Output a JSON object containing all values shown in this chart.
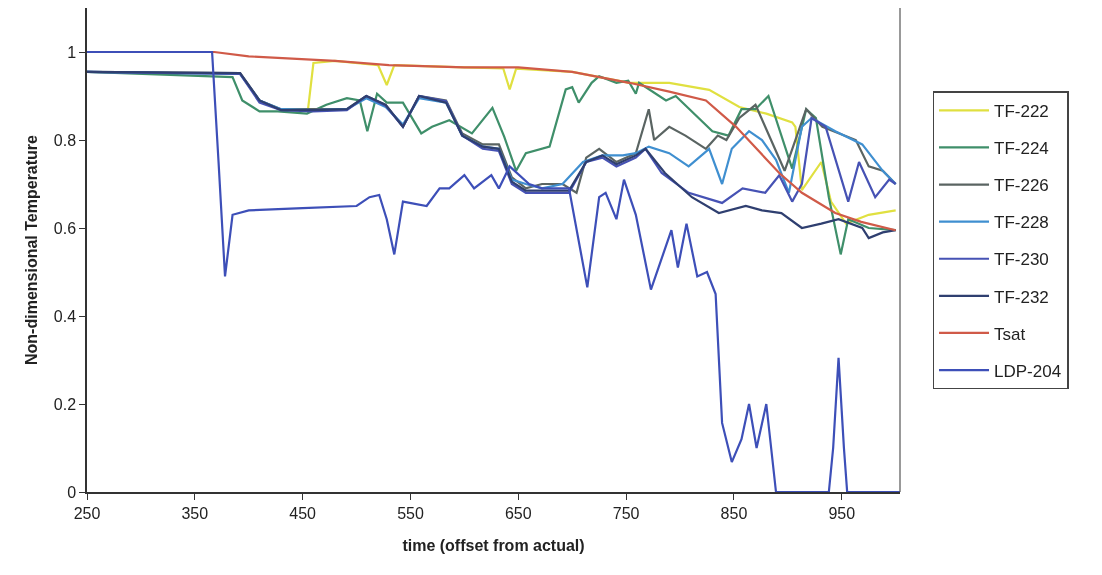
{
  "chart_data": {
    "type": "line",
    "xlabel": "time (offset from actual)",
    "ylabel": "Non-dimensional Temperature",
    "xlim": [
      250,
      1004
    ],
    "ylim": [
      0,
      1.1
    ],
    "xticks": [
      250,
      350,
      450,
      550,
      650,
      750,
      850,
      950
    ],
    "yticks": [
      0,
      0.2,
      0.4,
      0.6,
      0.8,
      1
    ],
    "grid": false,
    "legend": "right",
    "marker": "none",
    "line_style": "solid",
    "series": [
      {
        "name": "TF-222",
        "color": "#e0e040",
        "x": [
          455,
          460,
          480,
          520,
          528,
          535,
          600,
          636,
          642,
          648,
          700,
          753,
          790,
          827,
          855,
          880,
          904,
          907,
          913,
          931,
          940,
          954,
          975,
          1000
        ],
        "values": [
          0.87,
          0.975,
          0.98,
          0.97,
          0.925,
          0.97,
          0.965,
          0.963,
          0.915,
          0.962,
          0.955,
          0.93,
          0.93,
          0.914,
          0.875,
          0.86,
          0.84,
          0.83,
          0.686,
          0.75,
          0.66,
          0.61,
          0.63,
          0.64
        ]
      },
      {
        "name": "TF-224",
        "color": "#3f8f6a",
        "x": [
          250,
          385,
          394,
          410,
          427,
          454,
          472,
          491,
          503,
          510,
          519,
          528,
          543,
          560,
          570,
          586,
          607,
          626,
          637,
          648,
          657,
          679,
          694,
          700,
          706,
          718,
          725,
          741,
          752,
          759,
          762,
          787,
          796,
          830,
          845,
          857,
          870,
          882,
          904,
          917,
          926,
          938,
          949,
          956,
          975,
          1000
        ],
        "values": [
          0.955,
          0.943,
          0.89,
          0.865,
          0.865,
          0.86,
          0.88,
          0.895,
          0.89,
          0.82,
          0.905,
          0.885,
          0.885,
          0.815,
          0.83,
          0.845,
          0.815,
          0.873,
          0.807,
          0.73,
          0.77,
          0.785,
          0.915,
          0.92,
          0.885,
          0.93,
          0.945,
          0.93,
          0.935,
          0.905,
          0.93,
          0.89,
          0.9,
          0.82,
          0.81,
          0.87,
          0.87,
          0.9,
          0.735,
          0.87,
          0.85,
          0.67,
          0.54,
          0.62,
          0.6,
          0.595
        ]
      },
      {
        "name": "TF-226",
        "color": "#5a6462",
        "x": [
          250,
          392,
          410,
          430,
          460,
          491,
          509,
          527,
          543,
          558,
          583,
          598,
          617,
          632,
          644,
          657,
          672,
          691,
          704,
          713,
          725,
          741,
          759,
          771,
          776,
          790,
          805,
          824,
          835,
          843,
          855,
          870,
          897,
          917,
          932,
          963,
          975,
          988,
          1000
        ],
        "values": [
          0.955,
          0.952,
          0.89,
          0.87,
          0.87,
          0.87,
          0.9,
          0.88,
          0.83,
          0.9,
          0.89,
          0.815,
          0.79,
          0.79,
          0.715,
          0.69,
          0.7,
          0.7,
          0.68,
          0.76,
          0.78,
          0.75,
          0.77,
          0.87,
          0.8,
          0.83,
          0.81,
          0.78,
          0.81,
          0.8,
          0.85,
          0.88,
          0.73,
          0.87,
          0.83,
          0.8,
          0.74,
          0.73,
          0.7
        ]
      },
      {
        "name": "TF-228",
        "color": "#3f8fd0",
        "x": [
          250,
          392,
          410,
          430,
          460,
          491,
          509,
          527,
          543,
          558,
          583,
          598,
          617,
          632,
          644,
          657,
          672,
          691,
          710,
          728,
          747,
          759,
          771,
          790,
          808,
          827,
          839,
          848,
          864,
          876,
          889,
          901,
          913,
          922,
          944,
          969,
          988,
          1000
        ],
        "values": [
          0.955,
          0.95,
          0.89,
          0.87,
          0.868,
          0.87,
          0.895,
          0.875,
          0.835,
          0.895,
          0.885,
          0.81,
          0.785,
          0.78,
          0.71,
          0.7,
          0.69,
          0.7,
          0.75,
          0.765,
          0.765,
          0.77,
          0.785,
          0.77,
          0.74,
          0.78,
          0.7,
          0.78,
          0.82,
          0.8,
          0.755,
          0.68,
          0.83,
          0.85,
          0.82,
          0.79,
          0.73,
          0.7
        ]
      },
      {
        "name": "TF-230",
        "color": "#4652b4",
        "x": [
          250,
          392,
          410,
          430,
          460,
          491,
          509,
          527,
          543,
          558,
          583,
          598,
          617,
          632,
          644,
          657,
          672,
          697,
          713,
          728,
          741,
          759,
          768,
          783,
          808,
          839,
          858,
          879,
          892,
          904,
          913,
          922,
          935,
          956,
          966,
          981,
          994,
          1000
        ],
        "values": [
          0.955,
          0.95,
          0.885,
          0.868,
          0.865,
          0.868,
          0.9,
          0.878,
          0.83,
          0.9,
          0.888,
          0.81,
          0.78,
          0.775,
          0.7,
          0.68,
          0.68,
          0.68,
          0.75,
          0.76,
          0.74,
          0.76,
          0.78,
          0.725,
          0.68,
          0.657,
          0.69,
          0.68,
          0.72,
          0.66,
          0.7,
          0.85,
          0.83,
          0.66,
          0.75,
          0.67,
          0.71,
          0.7
        ]
      },
      {
        "name": "TF-232",
        "color": "#2f3f70",
        "x": [
          250,
          392,
          410,
          430,
          460,
          491,
          509,
          527,
          543,
          558,
          583,
          598,
          617,
          632,
          644,
          657,
          672,
          697,
          713,
          728,
          741,
          759,
          768,
          786,
          811,
          836,
          861,
          876,
          894,
          913,
          931,
          947,
          969,
          975,
          988,
          1000
        ],
        "values": [
          0.955,
          0.952,
          0.89,
          0.868,
          0.868,
          0.87,
          0.9,
          0.88,
          0.83,
          0.9,
          0.885,
          0.81,
          0.785,
          0.78,
          0.705,
          0.685,
          0.685,
          0.685,
          0.75,
          0.765,
          0.745,
          0.765,
          0.78,
          0.725,
          0.67,
          0.634,
          0.65,
          0.64,
          0.634,
          0.6,
          0.61,
          0.62,
          0.6,
          0.577,
          0.59,
          0.595
        ]
      },
      {
        "name": "Tsat",
        "color": "#d05a48",
        "x": [
          250,
          368,
          400,
          480,
          530,
          600,
          650,
          700,
          753,
          790,
          824,
          852,
          892,
          913,
          944,
          968,
          1000
        ],
        "values": [
          1,
          1,
          0.99,
          0.98,
          0.97,
          0.965,
          0.965,
          0.955,
          0.93,
          0.91,
          0.89,
          0.83,
          0.725,
          0.68,
          0.634,
          0.614,
          0.595
        ]
      },
      {
        "name": "LDP-204",
        "color": "#3d4fb8",
        "x": [
          250,
          366,
          372,
          378,
          385,
          400,
          450,
          500,
          512,
          521,
          528,
          535,
          543,
          565,
          577,
          586,
          600,
          609,
          625,
          632,
          642,
          660,
          672,
          697,
          714,
          725,
          731,
          741,
          748,
          759,
          773,
          792,
          798,
          806,
          816,
          825,
          833,
          839,
          848,
          857,
          864,
          871,
          880,
          889,
          938,
          942,
          947,
          952,
          955,
          1004
        ],
        "values": [
          1,
          1,
          0.75,
          0.49,
          0.63,
          0.64,
          0.645,
          0.65,
          0.67,
          0.675,
          0.62,
          0.54,
          0.66,
          0.65,
          0.69,
          0.69,
          0.72,
          0.69,
          0.72,
          0.69,
          0.74,
          0.7,
          0.69,
          0.69,
          0.465,
          0.67,
          0.68,
          0.62,
          0.71,
          0.63,
          0.46,
          0.595,
          0.51,
          0.61,
          0.49,
          0.5,
          0.45,
          0.157,
          0.068,
          0.12,
          0.2,
          0.1,
          0.2,
          0,
          0,
          0.1,
          0.305,
          0.1,
          0,
          0
        ]
      }
    ]
  }
}
